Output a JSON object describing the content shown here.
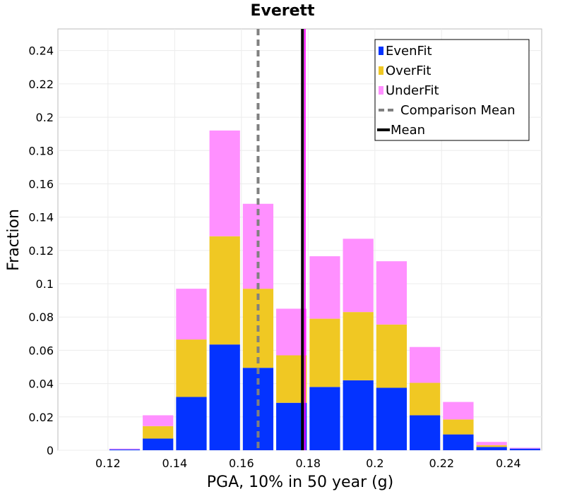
{
  "chart_data": {
    "type": "bar",
    "stacked": true,
    "title": "Everett",
    "xlabel": "PGA, 10% in 50 year (g)",
    "ylabel": "Fraction",
    "xlim": [
      0.105,
      0.25
    ],
    "ylim": [
      0,
      0.253
    ],
    "bin_width": 0.01,
    "x": [
      0.115,
      0.125,
      0.135,
      0.145,
      0.155,
      0.165,
      0.175,
      0.185,
      0.195,
      0.205,
      0.215,
      0.225,
      0.235,
      0.245
    ],
    "series": [
      {
        "name": "EvenFit",
        "color": "#0433ff",
        "values": [
          0.0,
          0.0005,
          0.007,
          0.032,
          0.0635,
          0.0495,
          0.0285,
          0.038,
          0.042,
          0.0375,
          0.021,
          0.0095,
          0.002,
          0.001
        ]
      },
      {
        "name": "OverFit",
        "color": "#f0c823",
        "values": [
          0.0,
          0.0,
          0.0075,
          0.0345,
          0.065,
          0.0475,
          0.0285,
          0.041,
          0.041,
          0.038,
          0.0195,
          0.009,
          0.001,
          0.0
        ]
      },
      {
        "name": "UnderFit",
        "color": "#ff90ff",
        "values": [
          0.0,
          0.0005,
          0.0065,
          0.0305,
          0.0635,
          0.051,
          0.028,
          0.0375,
          0.044,
          0.038,
          0.0215,
          0.0105,
          0.002,
          0.0005
        ]
      }
    ],
    "xticks": [
      0.12,
      0.14,
      0.16,
      0.18,
      0.2,
      0.22,
      0.24
    ],
    "xtick_labels": [
      "0.12",
      "0.14",
      "0.16",
      "0.18",
      "0.2",
      "0.22",
      "0.24"
    ],
    "yticks": [
      0,
      0.02,
      0.04,
      0.06,
      0.08,
      0.1,
      0.12,
      0.14,
      0.16,
      0.18,
      0.2,
      0.22,
      0.24
    ],
    "ytick_labels": [
      "0",
      "0.02",
      "0.04",
      "0.06",
      "0.08",
      "0.1",
      "0.12",
      "0.14",
      "0.16",
      "0.18",
      "0.2",
      "0.22",
      "0.24"
    ],
    "lines": [
      {
        "name": "Comparison Mean",
        "x": 0.165,
        "color": "#808080",
        "style": "dashed"
      },
      {
        "name": "Mean",
        "x": 0.1785,
        "color": "#000000",
        "style": "solid"
      }
    ],
    "mean_highlight": {
      "x": 0.1785,
      "color": "#ff00ff"
    },
    "legend_position": "top-right",
    "legend": [
      "EvenFit",
      "OverFit",
      "UnderFit",
      "Comparison Mean",
      "Mean"
    ],
    "grid": true
  }
}
